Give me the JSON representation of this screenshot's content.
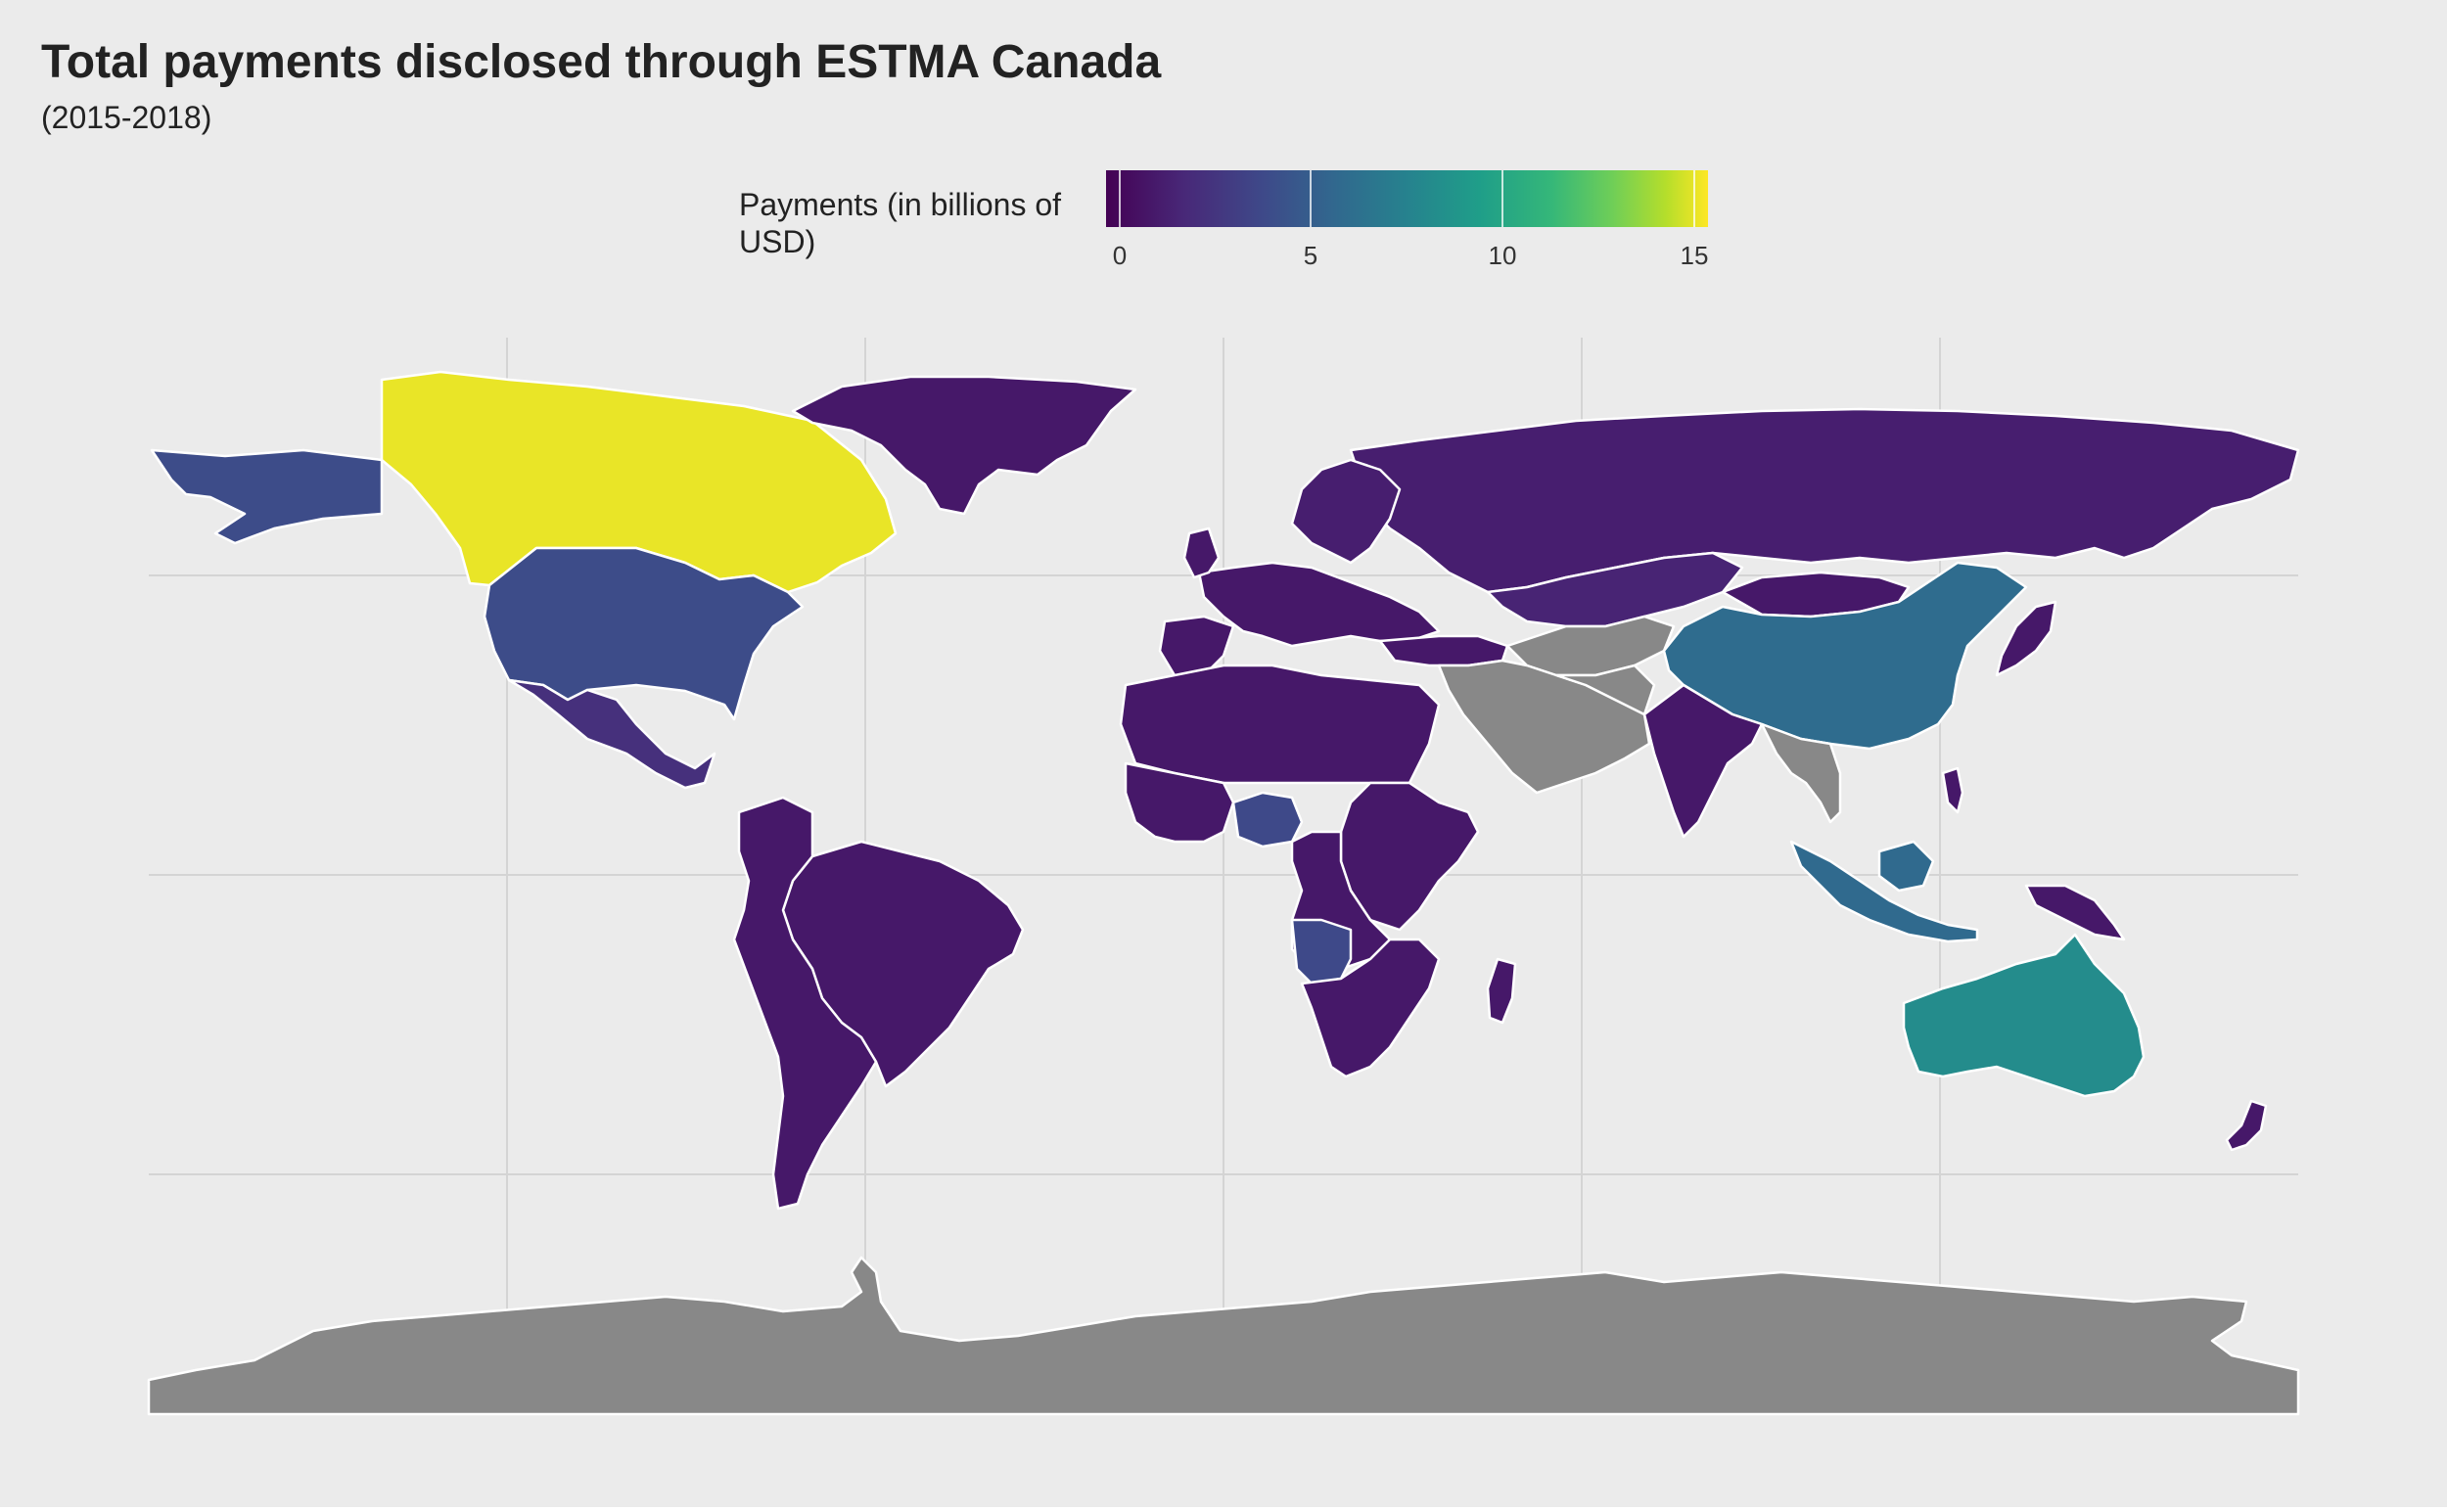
{
  "chart_title": "Total payments disclosed through ESTMA Canada",
  "chart_subtitle": "(2015-2018)",
  "legend": {
    "title": "Payments (in billions of USD)",
    "range": [
      0,
      15.5
    ],
    "breaks": [
      0,
      5,
      10,
      15
    ],
    "tick_labels": [
      "0",
      "5",
      "10",
      "15"
    ],
    "colormap": "viridis",
    "placement": "top",
    "no_data_color": "#888888"
  },
  "chart_data": {
    "type": "choropleth",
    "projection": "equirectangular",
    "grid": true,
    "value_units": "billions of USD",
    "regions": [
      {
        "name": "Canada",
        "value": 15.2
      },
      {
        "name": "United States",
        "value": 4.2
      },
      {
        "name": "Alaska",
        "value": 4.2
      },
      {
        "name": "China",
        "value": 6.2
      },
      {
        "name": "Australia",
        "value": 8.4
      },
      {
        "name": "Indonesia",
        "value": 6.0
      },
      {
        "name": "Angola",
        "value": 4.0
      },
      {
        "name": "Nigeria",
        "value": 4.0
      },
      {
        "name": "Mexico",
        "value": 2.5
      },
      {
        "name": "Russia",
        "value": 1.5
      },
      {
        "name": "Greenland",
        "value": 1.2
      },
      {
        "name": "Brazil",
        "value": 1.2
      },
      {
        "name": "India",
        "value": 1.2
      },
      {
        "name": "Kazakhstan",
        "value": 1.8
      },
      {
        "name": "Antarctica",
        "value": null
      },
      {
        "name": "Saudi Arabia",
        "value": null
      }
    ]
  }
}
